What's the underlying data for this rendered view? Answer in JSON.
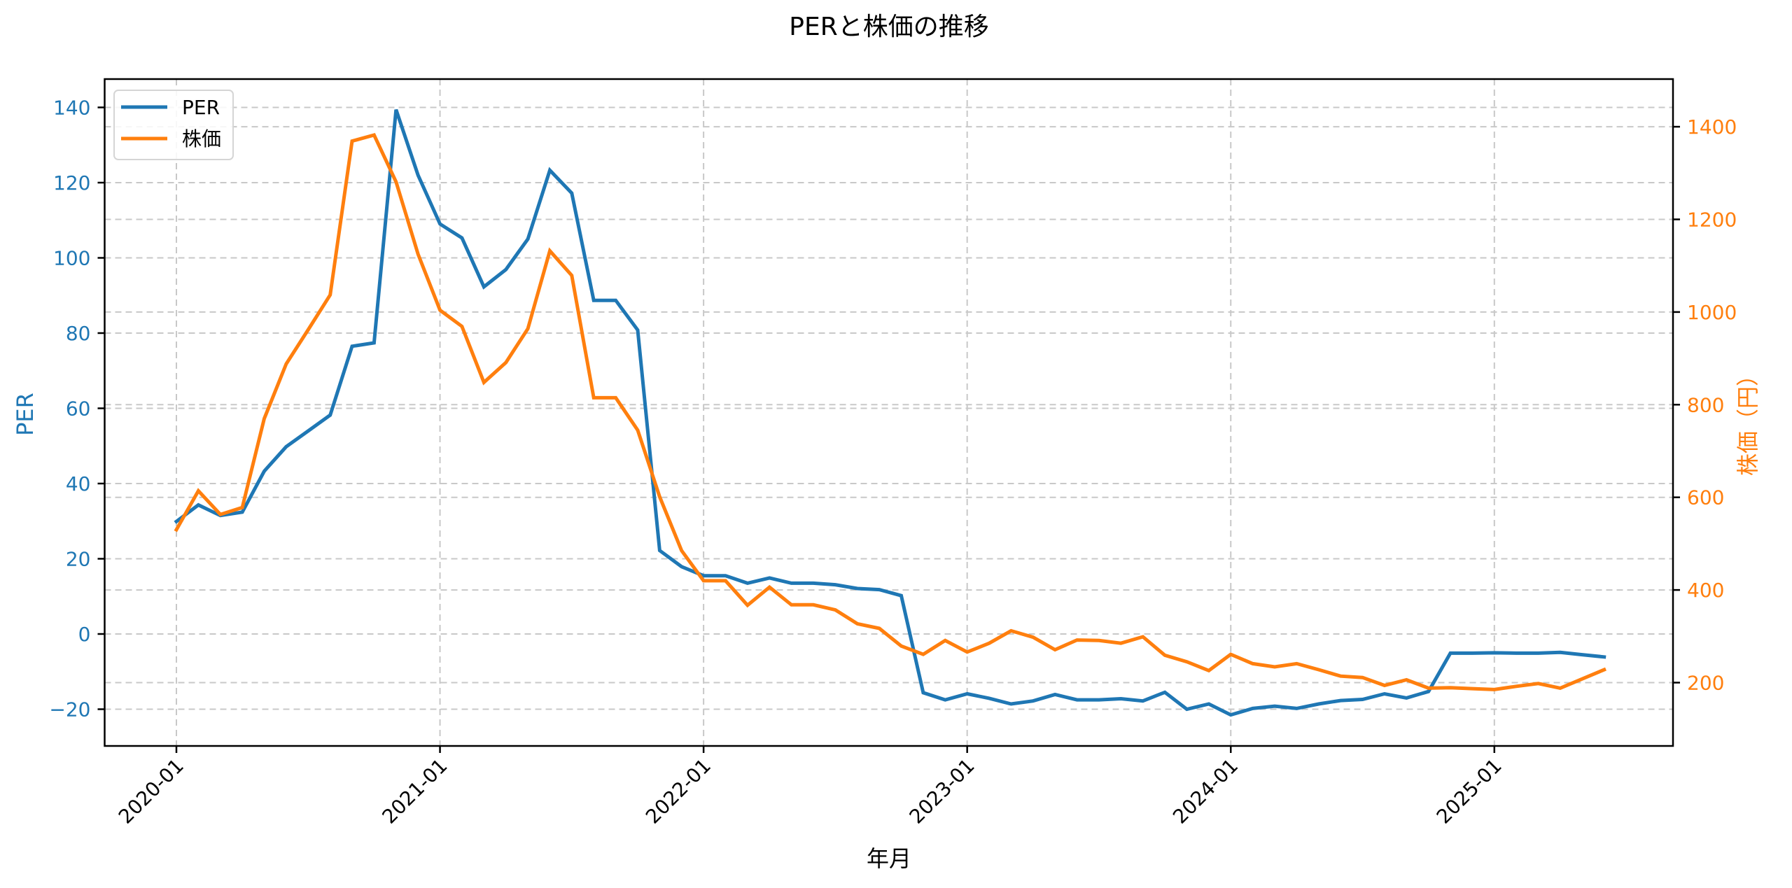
{
  "figure": {
    "title": "PERと株価の推移"
  },
  "colors": {
    "per": "#1f77b4",
    "price": "#ff7f0e",
    "grid": "#c8c8c8",
    "axis": "#000000"
  },
  "chart_data": {
    "type": "line",
    "title": "PERと株価の推移",
    "xlabel": "年月",
    "ylabel": "PER",
    "ylabel_right": "株価（円）",
    "x_ticks": [
      "2020-01",
      "2021-01",
      "2022-01",
      "2023-01",
      "2024-01",
      "2025-01"
    ],
    "y_ticks_left": [
      -20,
      0,
      20,
      40,
      60,
      80,
      100,
      120,
      140
    ],
    "y_ticks_right": [
      200,
      400,
      600,
      800,
      1000,
      1200,
      1400
    ],
    "ylim": [
      -30,
      148
    ],
    "ylim_right": [
      68,
      1480
    ],
    "grid": true,
    "legend": {
      "position": "upper left",
      "entries": [
        "PER",
        "株価"
      ]
    },
    "x": [
      "2020-01",
      "2020-02",
      "2020-03",
      "2020-04",
      "2020-05",
      "2020-06",
      "2020-07",
      "2020-08",
      "2020-09",
      "2020-10",
      "2020-11",
      "2020-12",
      "2021-01",
      "2021-02",
      "2021-03",
      "2021-04",
      "2021-05",
      "2021-06",
      "2021-07",
      "2021-08",
      "2021-09",
      "2021-10",
      "2021-11",
      "2021-12",
      "2022-01",
      "2022-02",
      "2022-03",
      "2022-04",
      "2022-05",
      "2022-06",
      "2022-07",
      "2022-08",
      "2022-09",
      "2022-10",
      "2022-11",
      "2022-12",
      "2023-01",
      "2023-02",
      "2023-03",
      "2023-04",
      "2023-05",
      "2023-06",
      "2023-07",
      "2023-08",
      "2023-09",
      "2023-10",
      "2023-11",
      "2023-12",
      "2024-01",
      "2024-02",
      "2024-03",
      "2024-04",
      "2024-05",
      "2024-06",
      "2024-07",
      "2024-08",
      "2024-09",
      "2024-10",
      "2024-11",
      "2024-12",
      "2025-01",
      "2025-02",
      "2025-03",
      "2025-04",
      "2025-05",
      "2025-06"
    ],
    "series": [
      {
        "name": "PER",
        "axis": "left",
        "color": "#1f77b4",
        "values": [
          29.9,
          34.3,
          31.5,
          32.4,
          43.3,
          49.8,
          54.0,
          58.2,
          76.5,
          77.4,
          139.4,
          122.0,
          109.0,
          105.3,
          92.3,
          96.9,
          105.0,
          123.3,
          117.2,
          88.7,
          88.7,
          80.8,
          22.2,
          17.9,
          15.5,
          15.5,
          13.5,
          14.9,
          13.5,
          13.5,
          13.1,
          12.1,
          11.8,
          10.2,
          -15.6,
          -17.5,
          -15.9,
          -17.1,
          -18.6,
          -17.8,
          -16.1,
          -17.5,
          -17.5,
          -17.2,
          -17.8,
          -15.5,
          -20.0,
          -18.6,
          -21.5,
          -19.8,
          -19.2,
          -19.8,
          -18.6,
          -17.7,
          -17.4,
          -15.9,
          -17.0,
          -15.3,
          -5.1,
          -5.1,
          -5.0,
          -5.1,
          -5.1,
          -4.9,
          -5.5,
          -6.1
        ]
      },
      {
        "name": "株価",
        "axis": "right",
        "color": "#ff7f0e",
        "values": [
          530,
          614,
          563,
          578,
          770,
          888,
          962,
          1037,
          1369,
          1382,
          1281,
          1125,
          1004,
          969,
          848,
          891,
          964,
          1132,
          1079,
          815,
          815,
          745,
          601,
          485,
          420,
          420,
          367,
          406,
          368,
          368,
          357,
          327,
          317,
          279,
          261,
          291,
          266,
          285,
          312,
          298,
          271,
          292,
          291,
          285,
          299,
          259,
          245,
          226,
          261,
          241,
          234,
          241,
          228,
          214,
          211,
          194,
          206,
          188,
          189,
          187,
          185,
          192,
          198,
          188,
          208,
          228
        ]
      }
    ]
  }
}
